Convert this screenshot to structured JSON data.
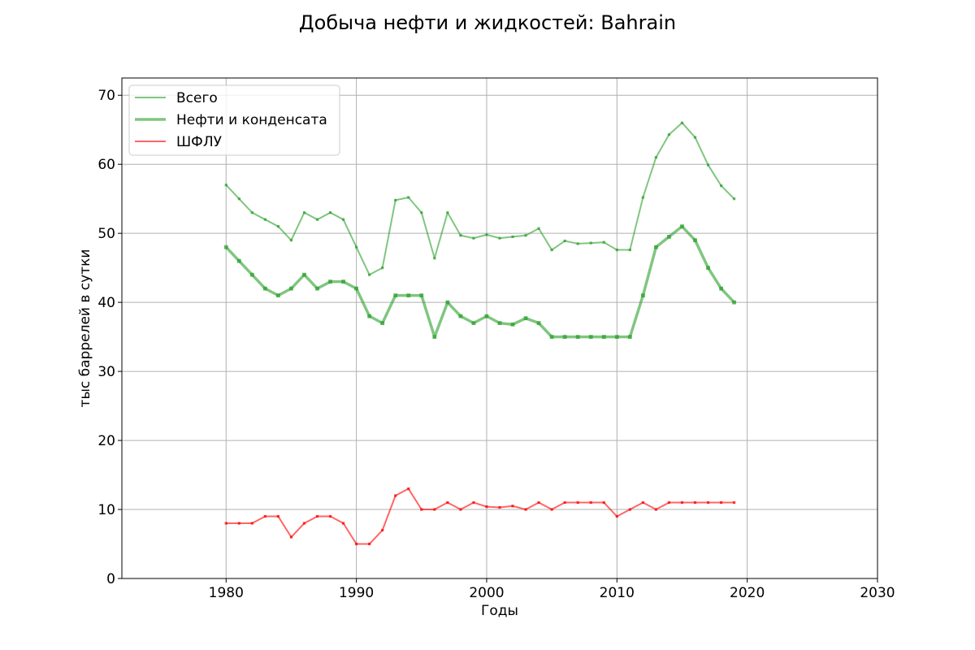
{
  "chart_data": {
    "type": "line",
    "title": "Добыча нефти и жидкостей: Bahrain",
    "xlabel": "Годы",
    "ylabel": "тыс баррелей в сутки",
    "xlim": [
      1972,
      2030
    ],
    "ylim": [
      0,
      72.5
    ],
    "xticks": [
      1980,
      1990,
      2000,
      2010,
      2020,
      2030
    ],
    "yticks": [
      0,
      10,
      20,
      30,
      40,
      50,
      60,
      70
    ],
    "grid": true,
    "legend_position": "top-left",
    "x": [
      1980,
      1981,
      1982,
      1983,
      1984,
      1985,
      1986,
      1987,
      1988,
      1989,
      1990,
      1991,
      1992,
      1993,
      1994,
      1995,
      1996,
      1997,
      1998,
      1999,
      2000,
      2001,
      2002,
      2003,
      2004,
      2005,
      2006,
      2007,
      2008,
      2009,
      2010,
      2011,
      2012,
      2013,
      2014,
      2015,
      2016,
      2017,
      2018,
      2019
    ],
    "series": [
      {
        "name": "Всего",
        "color": "#2ca02c",
        "values": [
          57,
          55,
          53,
          52,
          51,
          49,
          53,
          52,
          53,
          52,
          48,
          44,
          45,
          54.8,
          55.2,
          53,
          46.4,
          53,
          49.7,
          49.3,
          49.8,
          49.3,
          49.5,
          49.7,
          50.7,
          47.6,
          48.9,
          48.5,
          48.6,
          48.7,
          47.6,
          47.6,
          55.2,
          61,
          64.3,
          66,
          63.9,
          59.9,
          56.9,
          55
        ]
      },
      {
        "name": "Нефти и конденсата",
        "color": "#2ca02c",
        "values": [
          48,
          46,
          44,
          42,
          41,
          42,
          44,
          42,
          43,
          43,
          42,
          38,
          37,
          41,
          41,
          41,
          35,
          40,
          38,
          37,
          38,
          37,
          36.8,
          37.7,
          37,
          35,
          35,
          35,
          35,
          35,
          35,
          35,
          41,
          48,
          49.5,
          51,
          49,
          45,
          42,
          40
        ]
      },
      {
        "name": "ШФЛУ",
        "color": "#ff0000",
        "values": [
          8,
          8,
          8,
          9,
          9,
          6,
          8,
          9,
          9,
          8,
          5,
          5,
          7,
          12,
          13,
          10,
          10,
          11,
          10,
          11,
          10.4,
          10.3,
          10.5,
          10,
          11,
          10,
          11,
          11,
          11,
          11,
          9,
          10,
          11,
          10,
          11,
          11,
          11,
          11,
          11,
          11
        ]
      }
    ]
  }
}
